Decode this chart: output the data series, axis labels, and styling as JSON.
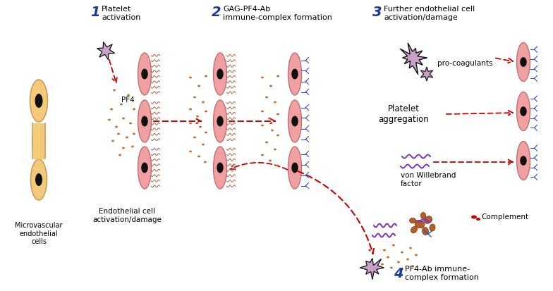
{
  "bg_color": "#ffffff",
  "cell_fill": "#f5c97a",
  "cell_stroke": "#c8a060",
  "endothelial_fill": "#f0a0a0",
  "endothelial_stroke": "#c07070",
  "nucleus_fill": "#111111",
  "platelet_fill": "#c8a0c8",
  "pf4_dot_color": "#c86820",
  "arrow_color": "#cc0000",
  "step_num_color": "#1a3a9a",
  "von_willebrand_color": "#8030c0",
  "antibody_color": "#3050c0",
  "immune_complex_color": "#b05010",
  "gag_color": "#b06040",
  "step1_title": "Platelet\nactivation",
  "step2_title": "GAG-PF4-Ab\nimmune-complex formation",
  "step3_title": "Further endothelial cell\nactivation/damage",
  "step4_title": "PF4-Ab immune-\ncomplex formation",
  "label_microvascular": "Microvascular\nendothelial\ncells",
  "label_endothelial": "Endothelial cell\nactivation/damage",
  "label_pf4": "PF4",
  "label_procoagulants": "pro-coagulants",
  "label_platelet_aggregation": "Platelet\naggregation",
  "label_von_willebrand": "von Willebrand\nfactor",
  "label_complement": "Complement"
}
